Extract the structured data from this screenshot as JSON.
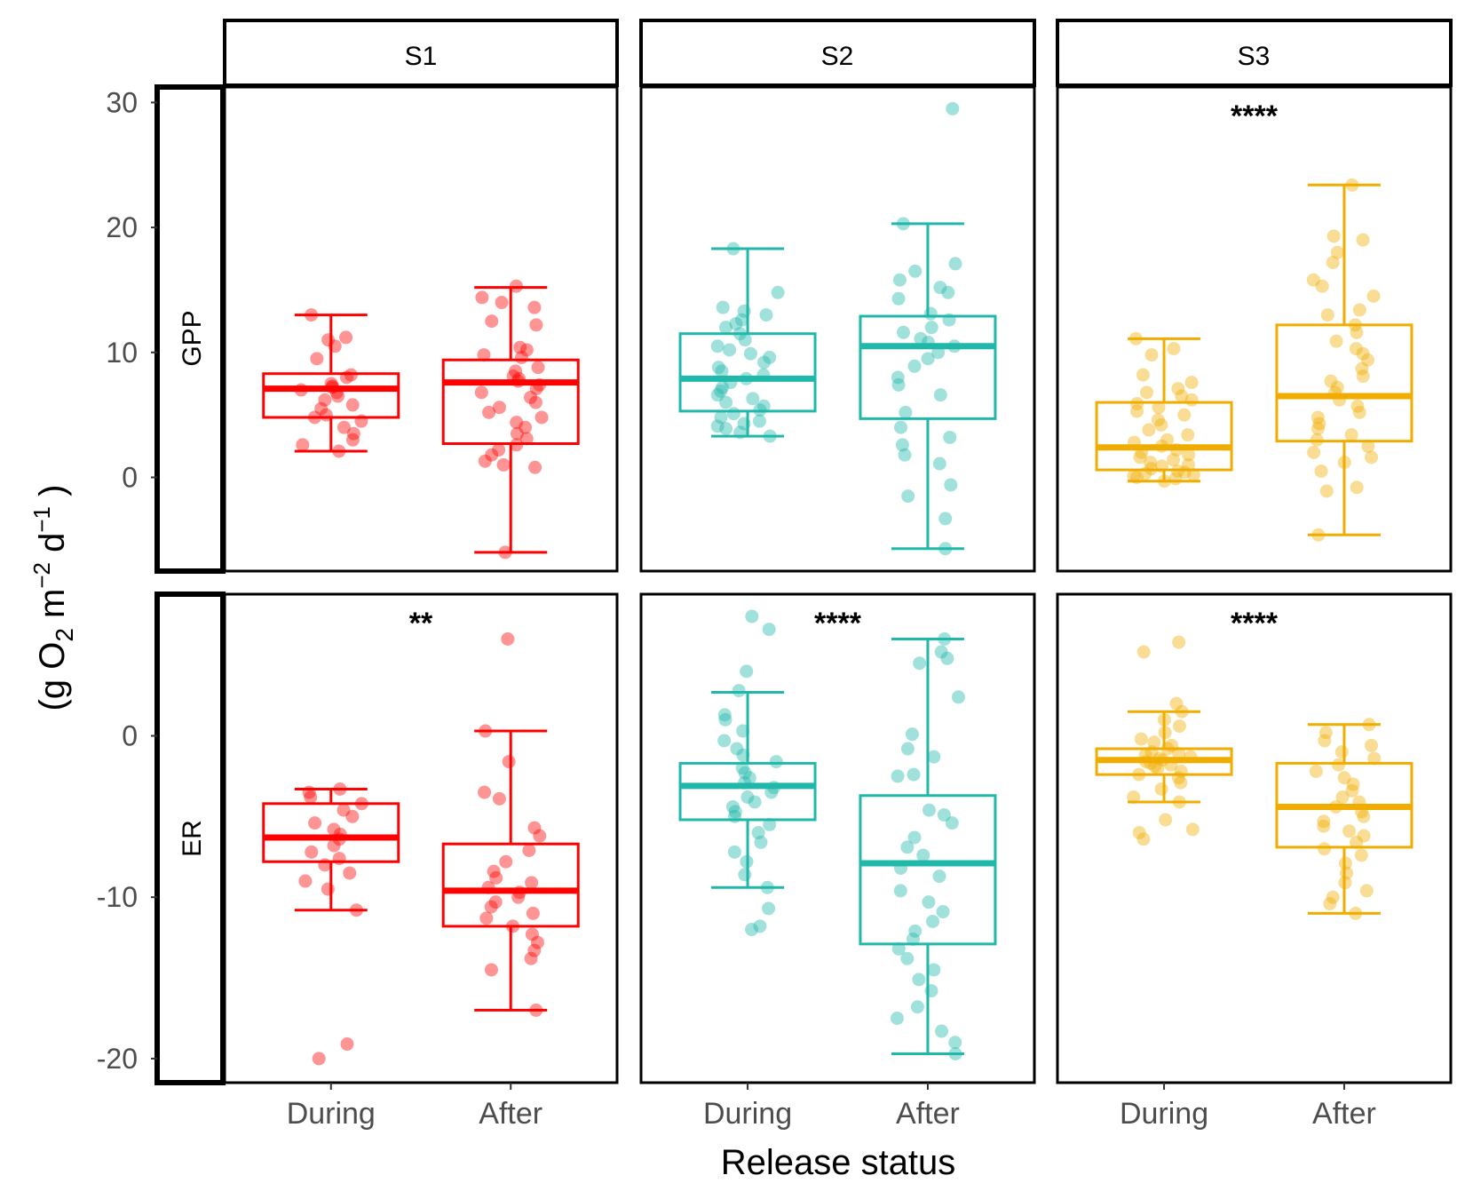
{
  "figure": {
    "ylabel_lead": "(g  O",
    "ylabel_sub2": "2",
    "ylabel_unit_m": " m",
    "ylabel_sup_m": "−2",
    "ylabel_unit_d": " d",
    "ylabel_sup_d": "−1",
    "ylabel_tail": " )",
    "xlabel": "Release status"
  },
  "colors": {
    "S1": "#ff0000",
    "S2": "#20b8aa",
    "S3": "#f0ad00"
  },
  "chart_data": {
    "type": "boxplot",
    "facet_columns": [
      "S1",
      "S2",
      "S3"
    ],
    "facet_rows": [
      "GPP",
      "ER"
    ],
    "categories": [
      "During",
      "After"
    ],
    "rows": {
      "GPP": {
        "yticks": [
          0,
          10,
          20,
          30
        ],
        "ylim": [
          -7,
          31
        ]
      },
      "ER": {
        "yticks": [
          -20,
          -10,
          0
        ],
        "ylim": [
          -21,
          9
        ]
      }
    },
    "panels": [
      {
        "site": "S1",
        "metric": "GPP",
        "significance": "",
        "boxes": [
          {
            "category": "During",
            "min": 2.1,
            "q1": 4.8,
            "median": 7.1,
            "q3": 8.3,
            "max": 13.0,
            "points": [
              13.0,
              11.2,
              10.5,
              11.0,
              9.5,
              8.2,
              8.0,
              7.5,
              7.3,
              7.2,
              7.0,
              6.8,
              6.5,
              6.2,
              5.8,
              5.5,
              5.0,
              4.8,
              4.5,
              4.0,
              3.5,
              3.0,
              2.6,
              2.1
            ]
          },
          {
            "category": "After",
            "min": -6.0,
            "q1": 2.7,
            "median": 7.6,
            "q3": 9.4,
            "max": 15.2,
            "points": [
              15.3,
              14.4,
              14.0,
              13.6,
              12.5,
              12.2,
              10.4,
              10.2,
              9.8,
              9.6,
              8.8,
              8.5,
              8.1,
              7.9,
              7.7,
              7.4,
              7.1,
              6.8,
              6.4,
              6.0,
              5.6,
              5.2,
              4.8,
              4.4,
              4.0,
              3.5,
              3.1,
              2.6,
              2.2,
              1.8,
              1.3,
              1.0,
              0.8,
              -6.0
            ]
          }
        ]
      },
      {
        "site": "S2",
        "metric": "GPP",
        "significance": "",
        "boxes": [
          {
            "category": "During",
            "min": 3.3,
            "q1": 5.3,
            "median": 7.9,
            "q3": 11.5,
            "max": 18.3,
            "points": [
              18.3,
              14.8,
              13.6,
              13.3,
              13.0,
              12.6,
              12.3,
              12.0,
              11.5,
              11.0,
              10.5,
              10.2,
              9.9,
              9.6,
              9.2,
              8.8,
              8.5,
              8.2,
              7.9,
              7.6,
              7.2,
              6.9,
              6.6,
              6.3,
              6.0,
              5.7,
              5.4,
              5.1,
              4.8,
              4.5,
              4.3,
              4.1,
              3.9,
              3.6,
              3.3
            ]
          },
          {
            "category": "After",
            "min": -5.7,
            "q1": 4.7,
            "median": 10.5,
            "q3": 12.9,
            "max": 20.3,
            "points": [
              29.5,
              20.3,
              17.1,
              16.5,
              15.8,
              15.2,
              14.8,
              14.3,
              13.1,
              12.6,
              12.0,
              11.6,
              11.1,
              10.8,
              10.5,
              10.0,
              9.5,
              8.9,
              8.0,
              7.4,
              6.6,
              5.2,
              4.0,
              3.2,
              2.6,
              1.8,
              1.1,
              -0.6,
              -1.5,
              -3.3,
              -5.7
            ]
          }
        ]
      },
      {
        "site": "S3",
        "metric": "GPP",
        "significance": "****",
        "boxes": [
          {
            "category": "During",
            "min": -0.3,
            "q1": 0.6,
            "median": 2.4,
            "q3": 6.0,
            "max": 11.1,
            "points": [
              11.1,
              10.3,
              9.8,
              8.2,
              7.6,
              7.1,
              6.8,
              6.5,
              6.2,
              5.9,
              5.6,
              5.3,
              5.0,
              4.6,
              4.2,
              3.8,
              3.4,
              3.0,
              2.8,
              2.5,
              2.2,
              2.0,
              1.8,
              1.6,
              1.4,
              1.2,
              1.0,
              0.9,
              0.7,
              0.5,
              0.4,
              0.3,
              0.2,
              0.1,
              0.0,
              -0.1,
              -0.3
            ]
          },
          {
            "category": "After",
            "min": -4.6,
            "q1": 2.9,
            "median": 6.5,
            "q3": 12.2,
            "max": 23.4,
            "points": [
              23.4,
              19.3,
              19.0,
              18.0,
              17.2,
              15.8,
              15.3,
              14.5,
              13.4,
              13.0,
              12.2,
              11.6,
              10.9,
              10.3,
              9.9,
              9.4,
              8.7,
              8.1,
              7.7,
              7.2,
              6.8,
              6.2,
              5.7,
              5.2,
              4.8,
              4.3,
              3.9,
              3.4,
              3.0,
              2.5,
              2.0,
              1.6,
              1.2,
              0.5,
              -0.8,
              -1.1,
              -4.6
            ]
          }
        ]
      },
      {
        "site": "S1",
        "metric": "ER",
        "significance": "**",
        "boxes": [
          {
            "category": "During",
            "min": -10.8,
            "q1": -7.8,
            "median": -6.3,
            "q3": -4.2,
            "max": -3.3,
            "points": [
              -3.3,
              -3.5,
              -3.8,
              -4.2,
              -4.6,
              -5.0,
              -5.4,
              -5.8,
              -6.1,
              -6.4,
              -6.8,
              -7.2,
              -7.6,
              -8.0,
              -8.5,
              -9.0,
              -9.5,
              -10.8,
              -19.1,
              -20.0
            ]
          },
          {
            "category": "After",
            "min": -17.0,
            "q1": -11.8,
            "median": -9.6,
            "q3": -6.7,
            "max": 0.3,
            "points": [
              6.0,
              0.3,
              -1.6,
              -3.5,
              -3.9,
              -5.7,
              -6.2,
              -7.1,
              -7.8,
              -8.4,
              -8.8,
              -9.1,
              -9.4,
              -9.7,
              -10.0,
              -10.3,
              -10.6,
              -11.0,
              -11.3,
              -11.8,
              -12.3,
              -12.8,
              -13.3,
              -13.8,
              -14.5,
              -17.0
            ]
          }
        ]
      },
      {
        "site": "S2",
        "metric": "ER",
        "significance": "****",
        "boxes": [
          {
            "category": "During",
            "min": -9.4,
            "q1": -5.2,
            "median": -3.1,
            "q3": -1.7,
            "max": 2.7,
            "points": [
              7.4,
              6.6,
              4.0,
              2.8,
              1.3,
              1.0,
              0.3,
              -0.3,
              -0.8,
              -1.2,
              -1.6,
              -2.0,
              -2.3,
              -2.6,
              -2.9,
              -3.2,
              -3.5,
              -3.8,
              -4.1,
              -4.4,
              -4.7,
              -5.0,
              -5.5,
              -6.0,
              -6.6,
              -7.2,
              -7.8,
              -8.6,
              -9.4,
              -10.7,
              -11.8,
              -12.0
            ]
          },
          {
            "category": "After",
            "min": -19.7,
            "q1": -12.9,
            "median": -7.9,
            "q3": -3.7,
            "max": 6.0,
            "points": [
              6.0,
              5.2,
              4.8,
              4.5,
              2.4,
              0.1,
              -0.8,
              -1.3,
              -2.4,
              -2.5,
              -4.6,
              -4.9,
              -5.4,
              -6.3,
              -6.9,
              -7.4,
              -8.2,
              -8.7,
              -9.6,
              -10.3,
              -10.9,
              -11.5,
              -12.1,
              -12.6,
              -13.2,
              -13.8,
              -14.5,
              -15.1,
              -15.8,
              -16.8,
              -17.5,
              -18.3,
              -19.0,
              -19.7
            ]
          }
        ]
      },
      {
        "site": "S3",
        "metric": "ER",
        "significance": "****",
        "boxes": [
          {
            "category": "During",
            "min": -4.1,
            "q1": -2.4,
            "median": -1.5,
            "q3": -0.8,
            "max": 1.5,
            "points": [
              5.8,
              5.2,
              2.0,
              1.5,
              1.0,
              0.6,
              0.2,
              -0.2,
              -0.4,
              -0.6,
              -0.8,
              -1.0,
              -1.1,
              -1.2,
              -1.3,
              -1.4,
              -1.5,
              -1.6,
              -1.7,
              -1.8,
              -1.9,
              -2.0,
              -2.2,
              -2.4,
              -2.6,
              -2.9,
              -3.3,
              -3.8,
              -4.1,
              -5.2,
              -5.8,
              -6.0,
              -6.4
            ]
          },
          {
            "category": "After",
            "min": -11.0,
            "q1": -6.9,
            "median": -4.4,
            "q3": -1.7,
            "max": 0.7,
            "points": [
              0.7,
              0.2,
              -0.3,
              -0.6,
              -1.0,
              -1.4,
              -1.8,
              -2.2,
              -2.6,
              -3.0,
              -3.4,
              -3.8,
              -4.1,
              -4.4,
              -4.7,
              -5.0,
              -5.3,
              -5.6,
              -5.9,
              -6.2,
              -6.6,
              -7.0,
              -7.4,
              -7.9,
              -8.5,
              -9.1,
              -9.6,
              -10.0,
              -10.4,
              -11.0
            ]
          }
        ]
      }
    ]
  }
}
